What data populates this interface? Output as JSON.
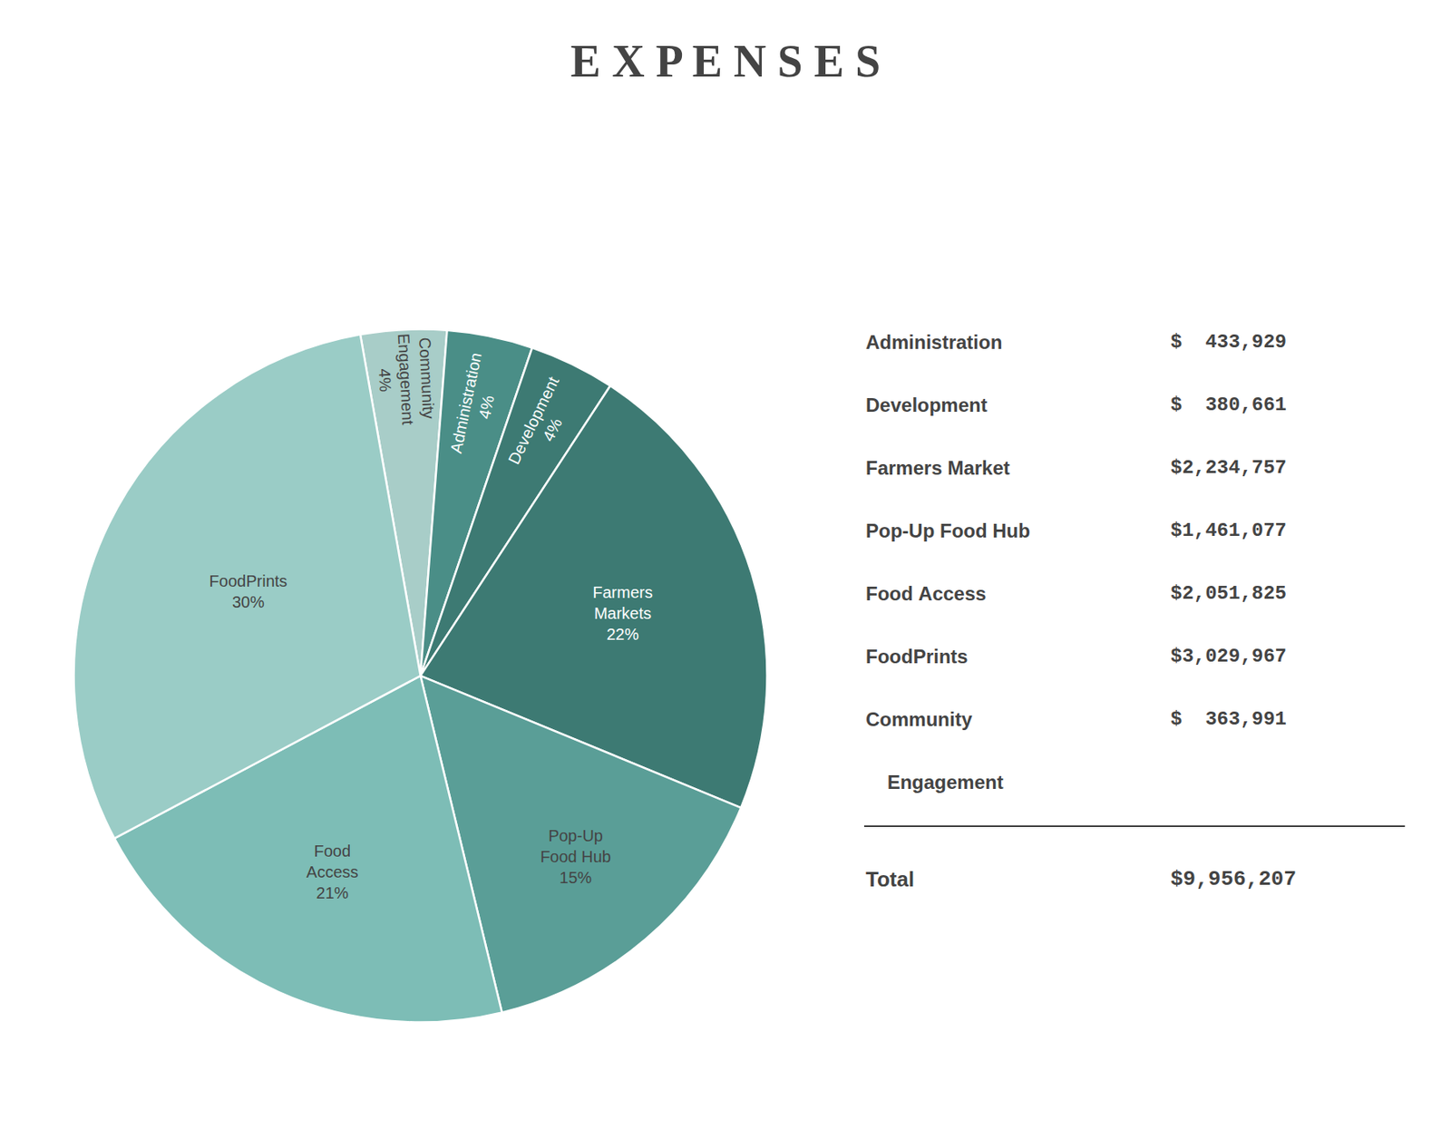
{
  "chart_data": {
    "type": "pie",
    "title": "E X P E N S E S",
    "categories": [
      "Community\nEngagement",
      "Administration",
      "Development",
      "Farmers\nMarkets",
      "Pop-Up\nFood Hub",
      "Food\nAccess",
      "FoodPrints"
    ],
    "values": [
      4,
      4,
      4,
      22,
      15,
      21,
      30
    ],
    "value_labels": [
      "4%",
      "4%",
      "4%",
      "22%",
      "15%",
      "21%",
      "30%"
    ],
    "data_labels": true,
    "colors": [
      "#a8cdc8",
      "#4a8e87",
      "#3d7a73",
      "#3d7a73",
      "#5a9e97",
      "#7dbdb6",
      "#9accc6"
    ],
    "legend": false,
    "table": [
      {
        "name": "Administration",
        "amount": "$  433,929"
      },
      {
        "name": "Development",
        "amount": "$  380,661"
      },
      {
        "name": "Farmers Market",
        "amount": "$2,234,757"
      },
      {
        "name": "Pop-Up Food Hub",
        "amount": "$1,461,077"
      },
      {
        "name": "Food Access",
        "amount": "$2,051,825"
      },
      {
        "name": "FoodPrints",
        "amount": "$3,029,967"
      },
      {
        "name": "Community",
        "amount": "$  363,991"
      },
      {
        "name": "    Engagement"
      }
    ],
    "total_label": "Total",
    "total_amount": "$9,956,207"
  }
}
